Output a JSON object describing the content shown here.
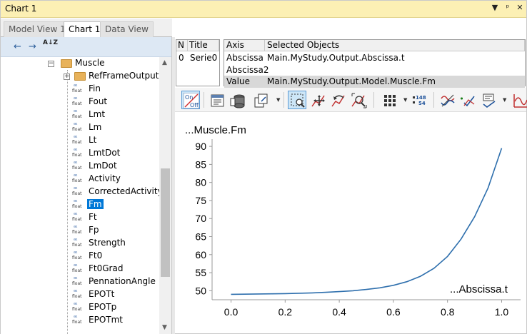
{
  "window": {
    "title": "Chart 1",
    "controls": [
      "▼",
      "ᵖ",
      "✕"
    ]
  },
  "tabs": [
    {
      "label": "Model View 1",
      "active": false
    },
    {
      "label": "Chart 1",
      "active": true
    },
    {
      "label": "Data View",
      "active": false
    }
  ],
  "tree_toolbar": {
    "back": "←",
    "forward": "→",
    "sort": "A↓Z"
  },
  "tree": {
    "float_icon_top": "ᵋᵋᵋ",
    "float_icon_label": "float",
    "folders": [
      {
        "label": "Muscle",
        "expander": "−"
      },
      {
        "label": "RefFrameOutput",
        "expander": "+"
      }
    ],
    "items": [
      "Fin",
      "Fout",
      "Lmt",
      "Lm",
      "Lt",
      "LmtDot",
      "LmDot",
      "Activity",
      "CorrectedActivity",
      "Fm",
      "Ft",
      "Fp",
      "Strength",
      "Ft0",
      "Ft0Grad",
      "PennationAngle",
      "EPOTt",
      "EPOTp",
      "EPOTmt"
    ],
    "selected": "Fm"
  },
  "series_table": {
    "headers": [
      "N",
      "Title"
    ],
    "rows": [
      {
        "n": "0",
        "title": "Serie0"
      }
    ]
  },
  "axes_table": {
    "headers": [
      "Axis",
      "Selected Objects"
    ],
    "rows": [
      {
        "axis": "Abscissa",
        "object": "Main.MyStudy.Output.Abscissa.t",
        "selected": false
      },
      {
        "axis": "Abscissa2",
        "object": "",
        "selected": false
      },
      {
        "axis": "Value",
        "object": "Main.MyStudy.Output.Model.Muscle.Fm",
        "selected": true
      }
    ]
  },
  "chart_toolbar": {
    "onoff_top": "On",
    "onoff_bottom": "Off",
    "table_numbers_top": "148",
    "table_numbers_bottom": "54"
  },
  "chart_data": {
    "type": "line",
    "title": "...Muscle.Fm",
    "xlabel": "...Abscissa.t",
    "ylabel": "",
    "xlim": [
      -0.07,
      1.07
    ],
    "ylim": [
      47.5,
      92
    ],
    "xticks": [
      0.0,
      0.2,
      0.4,
      0.6,
      0.8,
      1.0
    ],
    "xtick_labels": [
      "0.0",
      "0.2",
      "0.4",
      "0.6",
      "0.8",
      "1.0"
    ],
    "yticks": [
      50,
      55,
      60,
      65,
      70,
      75,
      80,
      85,
      90
    ],
    "ytick_labels": [
      "50",
      "55",
      "60",
      "65",
      "70",
      "75",
      "80",
      "85",
      "90"
    ],
    "grid": false,
    "legend": "none",
    "line_color": "#2e6fad",
    "series": [
      {
        "x": [
          0.0,
          0.05,
          0.1,
          0.15,
          0.2,
          0.25,
          0.3,
          0.35,
          0.4,
          0.45,
          0.5,
          0.55,
          0.6,
          0.65,
          0.7,
          0.75,
          0.8,
          0.85,
          0.9,
          0.95,
          1.0
        ],
        "values": [
          49.0,
          49.05,
          49.1,
          49.15,
          49.2,
          49.3,
          49.4,
          49.55,
          49.75,
          50.0,
          50.35,
          50.8,
          51.5,
          52.5,
          54.0,
          56.2,
          59.5,
          64.3,
          70.5,
          78.5,
          89.5
        ]
      }
    ]
  }
}
